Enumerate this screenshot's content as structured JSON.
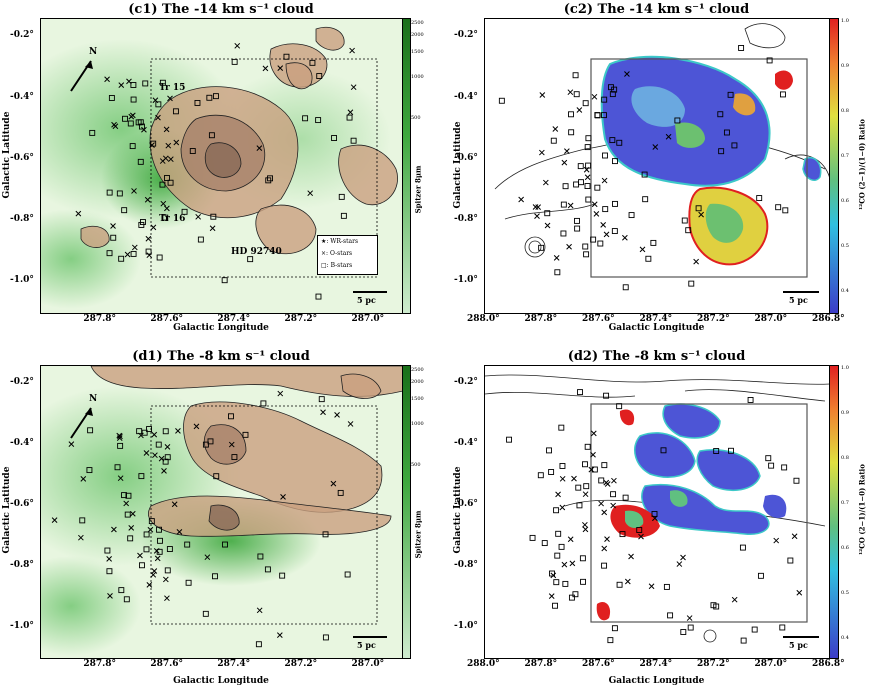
{
  "colors": {
    "spitzer_green": "#2f9a2f",
    "cloud_tan": "#c79b80",
    "ratio_low": "#3c3cc8",
    "ratio_mid": "#3cc8c8",
    "ratio_high": "#e02020",
    "axis": "#000000"
  },
  "labels": {
    "glat": "Galactic Latitude",
    "glon": "Galactic Longitude",
    "spitzer": "Spitzer 8μm",
    "ratio_c": "¹²CO (2−1)/(1−0) Ratio",
    "ratio_d": "¹²CO (2−1)/(1−0) Ratio",
    "north": "N",
    "scale": "5 pc",
    "tr15": "Tr 15",
    "tr16": "Tr 16",
    "hd": "HD 92740",
    "legend_wr": "★: WR-stars",
    "legend_o": "×: O-stars",
    "legend_b": "□: B-stars"
  },
  "chart_data": [
    {
      "id": "c1",
      "type": "heatmap",
      "title": "(c1) The -14 km s⁻¹ cloud",
      "xlabel": "Galactic Longitude",
      "ylabel": "Galactic Latitude",
      "x_ticks": [
        "287.8°",
        "287.6°",
        "287.4°",
        "287.2°",
        "287.0°"
      ],
      "y_ticks": [
        "-0.2°",
        "-0.4°",
        "-0.6°",
        "-0.8°",
        "-1.0°"
      ],
      "xlim": [
        287.98,
        286.9
      ],
      "ylim": [
        -1.1,
        -0.14
      ],
      "colorbar": {
        "label": "Spitzer 8μm",
        "ticks": [
          "2500",
          "2000",
          "1500",
          "1000",
          "500"
        ]
      },
      "annotations": [
        "N",
        "Tr 15",
        "Tr 16",
        "HD 92740",
        "5 pc",
        "★: WR-stars",
        "×: O-stars",
        "□: B-stars"
      ]
    },
    {
      "id": "c2",
      "type": "heatmap",
      "title": "(c2) The -14 km s⁻¹ cloud",
      "xlabel": "Galactic Longitude",
      "ylabel": "Galactic Latitude",
      "x_ticks": [
        "288.0°",
        "287.8°",
        "287.6°",
        "287.4°",
        "287.2°",
        "287.0°",
        "286.8°"
      ],
      "y_ticks": [
        "-0.2°",
        "-0.4°",
        "-0.6°",
        "-0.8°",
        "-1.0°"
      ],
      "xlim": [
        288.0,
        286.8
      ],
      "ylim": [
        -1.1,
        -0.14
      ],
      "colorbar": {
        "label": "¹²CO (2−1)/(1−0) Ratio",
        "ticks": [
          "1.0",
          "0.9",
          "0.8",
          "0.7",
          "0.6",
          "0.5",
          "0.4"
        ],
        "range": [
          0.35,
          1.0
        ]
      },
      "annotations": [
        "5 pc"
      ]
    },
    {
      "id": "d1",
      "type": "heatmap",
      "title": "(d1) The -8 km s⁻¹ cloud",
      "xlabel": "Galactic Longitude",
      "ylabel": "Galactic Latitude",
      "x_ticks": [
        "287.8°",
        "287.6°",
        "287.4°",
        "287.2°",
        "287.0°"
      ],
      "y_ticks": [
        "-0.2°",
        "-0.4°",
        "-0.6°",
        "-0.8°",
        "-1.0°"
      ],
      "xlim": [
        287.98,
        286.9
      ],
      "ylim": [
        -1.1,
        -0.14
      ],
      "colorbar": {
        "label": "Spitzer 8μm",
        "ticks": [
          "2500",
          "2000",
          "1500",
          "1000",
          "500"
        ]
      },
      "annotations": [
        "N",
        "5 pc"
      ]
    },
    {
      "id": "d2",
      "type": "heatmap",
      "title": "(d2) The -8 km s⁻¹ cloud",
      "xlabel": "Galactic Longitude",
      "ylabel": "Galactic Latitude",
      "x_ticks": [
        "288.0°",
        "287.8°",
        "287.6°",
        "287.4°",
        "287.2°",
        "287.0°",
        "286.8°"
      ],
      "y_ticks": [
        "-0.2°",
        "-0.4°",
        "-0.6°",
        "-0.8°",
        "-1.0°"
      ],
      "xlim": [
        288.0,
        286.8
      ],
      "ylim": [
        -1.1,
        -0.14
      ],
      "colorbar": {
        "label": "¹²CO (2−1)/(1−0) Ratio",
        "ticks": [
          "1.0",
          "0.9",
          "0.8",
          "0.7",
          "0.6",
          "0.5",
          "0.4"
        ],
        "range": [
          0.35,
          1.0
        ]
      },
      "annotations": [
        "5 pc"
      ]
    }
  ]
}
